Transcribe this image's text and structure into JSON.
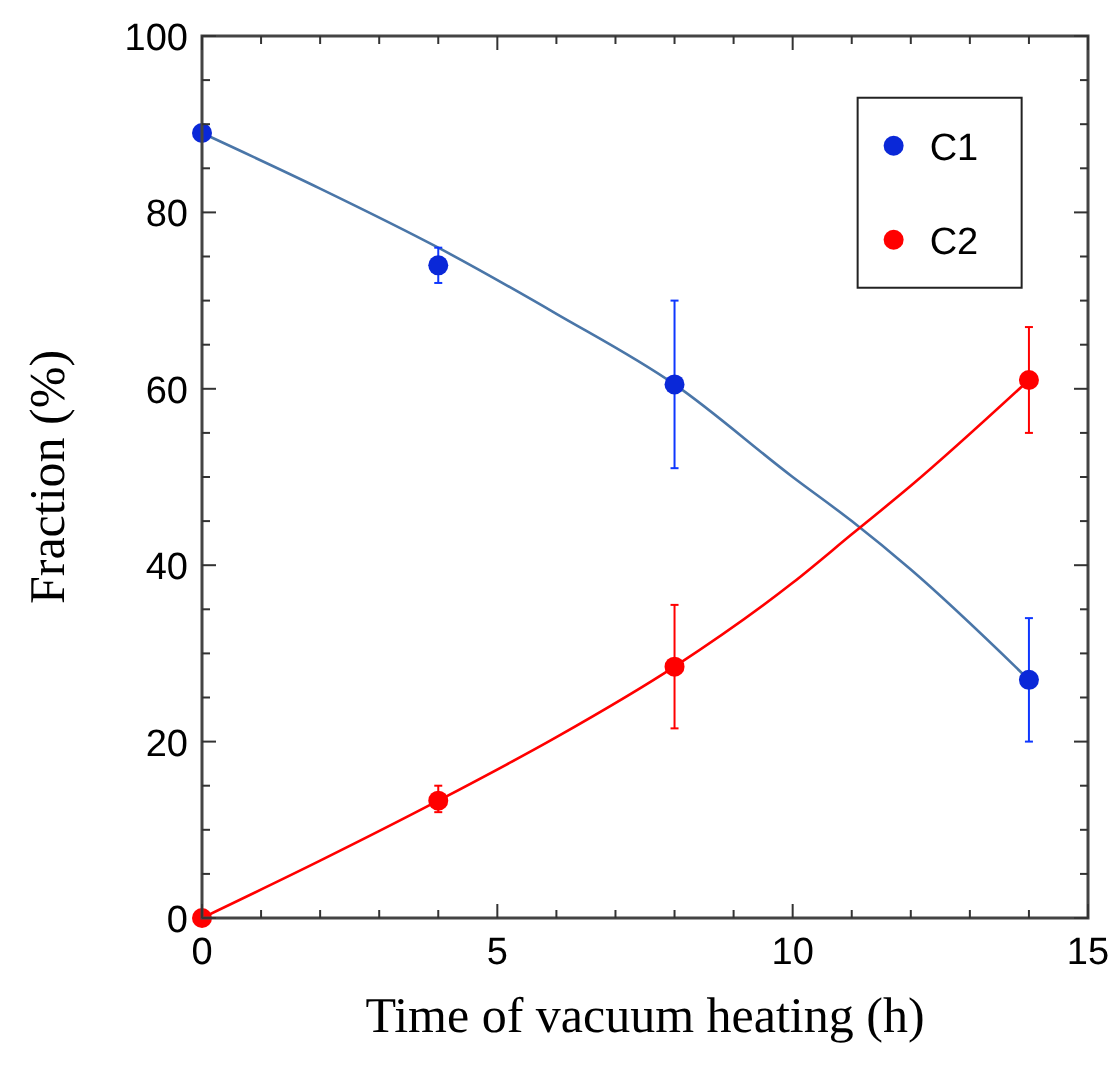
{
  "chart_data": {
    "type": "scatter",
    "xlabel": "Time of vacuum heating (h)",
    "ylabel": "Fraction (%)",
    "xlim": [
      0,
      15
    ],
    "ylim": [
      0,
      100
    ],
    "xticks": [
      0,
      {
        "value": 1,
        "label": null
      },
      {
        "value": 2,
        "label": null
      },
      {
        "value": 3,
        "label": null
      },
      {
        "value": 4,
        "label": null
      },
      5,
      {
        "value": 6,
        "label": null
      },
      {
        "value": 7,
        "label": null
      },
      {
        "value": 8,
        "label": null
      },
      {
        "value": 9,
        "label": null
      },
      10,
      {
        "value": 11,
        "label": null
      },
      {
        "value": 12,
        "label": null
      },
      {
        "value": 13,
        "label": null
      },
      {
        "value": 14,
        "label": null
      },
      15
    ],
    "yticks": [
      0,
      {
        "value": 5,
        "label": null
      },
      {
        "value": 10,
        "label": null
      },
      {
        "value": 15,
        "label": null
      },
      20,
      {
        "value": 25,
        "label": null
      },
      {
        "value": 30,
        "label": null
      },
      {
        "value": 35,
        "label": null
      },
      40,
      {
        "value": 45,
        "label": null
      },
      {
        "value": 50,
        "label": null
      },
      {
        "value": 55,
        "label": null
      },
      60,
      {
        "value": 65,
        "label": null
      },
      {
        "value": 70,
        "label": null
      },
      {
        "value": 75,
        "label": null
      },
      80,
      {
        "value": 85,
        "label": null
      },
      {
        "value": 90,
        "label": null
      },
      {
        "value": 95,
        "label": null
      },
      100
    ],
    "grid": false,
    "legend": "top right",
    "series": [
      {
        "name": "C1",
        "marker": "circle",
        "color": "#0a28d8",
        "x": [
          0,
          4,
          8,
          14
        ],
        "values": [
          89,
          74,
          60.5,
          27
        ],
        "errors": [
          null,
          [
            72,
            76
          ],
          [
            51,
            70
          ],
          [
            20,
            34
          ]
        ]
      },
      {
        "name": "C2",
        "marker": "circle",
        "color": "#ff0000",
        "x": [
          0,
          4,
          8,
          14
        ],
        "values": [
          0,
          13.3,
          28.5,
          61
        ],
        "errors": [
          null,
          [
            12,
            15
          ],
          [
            21.5,
            35.5
          ],
          [
            55,
            67
          ]
        ]
      },
      {
        "type": "line",
        "marker": "none",
        "color": "#4a76a8",
        "x": [
          0,
          2,
          4,
          6,
          8,
          10,
          11,
          12,
          14
        ],
        "values": [
          89,
          82.7,
          76,
          68.5,
          60.5,
          50,
          45,
          39.5,
          27
        ]
      },
      {
        "type": "line",
        "marker": "none",
        "color": "#ff0000",
        "x": [
          0,
          2,
          4,
          6,
          8,
          10,
          11,
          12,
          14
        ],
        "values": [
          0,
          6.5,
          13.3,
          20.5,
          28.5,
          38,
          43.5,
          49,
          61
        ]
      }
    ]
  }
}
